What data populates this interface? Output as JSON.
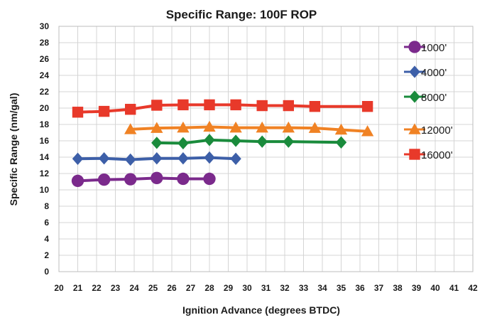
{
  "chart_data": {
    "type": "line",
    "title": "Specific Range: 100F ROP",
    "xlabel": "Ignition Advance (degrees BTDC)",
    "ylabel": "Specific Range (nm/gal)",
    "xlim": [
      20,
      42
    ],
    "ylim": [
      0,
      30
    ],
    "x_ticks": [
      20,
      21,
      22,
      23,
      24,
      25,
      26,
      27,
      28,
      29,
      30,
      31,
      32,
      33,
      34,
      35,
      36,
      37,
      38,
      39,
      40,
      41,
      42
    ],
    "y_ticks": [
      0,
      2,
      4,
      6,
      8,
      10,
      12,
      14,
      16,
      18,
      20,
      22,
      24,
      26,
      28,
      30
    ],
    "grid": "vertical-and-horizontal",
    "legend_position": "right",
    "series": [
      {
        "name": "1000'",
        "color": "#7b2a8c",
        "marker": "circle",
        "points": [
          [
            21.0,
            11.1
          ],
          [
            22.4,
            11.25
          ],
          [
            23.8,
            11.3
          ],
          [
            25.2,
            11.45
          ],
          [
            26.6,
            11.35
          ],
          [
            28.0,
            11.35
          ]
        ]
      },
      {
        "name": "4000'",
        "color": "#3d5fa8",
        "marker": "diamond",
        "points": [
          [
            21.0,
            13.8
          ],
          [
            22.4,
            13.85
          ],
          [
            23.8,
            13.7
          ],
          [
            25.2,
            13.85
          ],
          [
            26.6,
            13.85
          ],
          [
            28.0,
            13.95
          ],
          [
            29.4,
            13.8
          ]
        ]
      },
      {
        "name": "8000'",
        "color": "#1a8b3c",
        "marker": "diamond",
        "points": [
          [
            25.2,
            15.75
          ],
          [
            26.6,
            15.7
          ],
          [
            28.0,
            16.1
          ],
          [
            29.4,
            16.0
          ],
          [
            30.8,
            15.9
          ],
          [
            32.2,
            15.9
          ],
          [
            35.0,
            15.8
          ]
        ]
      },
      {
        "name": "12000'",
        "color": "#f08224",
        "marker": "triangle",
        "points": [
          [
            23.8,
            17.4
          ],
          [
            25.2,
            17.55
          ],
          [
            26.6,
            17.6
          ],
          [
            28.0,
            17.7
          ],
          [
            29.4,
            17.6
          ],
          [
            30.8,
            17.6
          ],
          [
            32.2,
            17.6
          ],
          [
            33.6,
            17.55
          ],
          [
            35.0,
            17.35
          ],
          [
            36.4,
            17.15
          ]
        ]
      },
      {
        "name": "16000'",
        "color": "#e8392a",
        "marker": "square",
        "points": [
          [
            21.0,
            19.5
          ],
          [
            22.4,
            19.6
          ],
          [
            23.8,
            19.85
          ],
          [
            25.2,
            20.35
          ],
          [
            26.6,
            20.4
          ],
          [
            28.0,
            20.4
          ],
          [
            29.4,
            20.4
          ],
          [
            30.8,
            20.3
          ],
          [
            32.2,
            20.3
          ],
          [
            33.6,
            20.2
          ],
          [
            36.4,
            20.2
          ]
        ]
      }
    ]
  }
}
